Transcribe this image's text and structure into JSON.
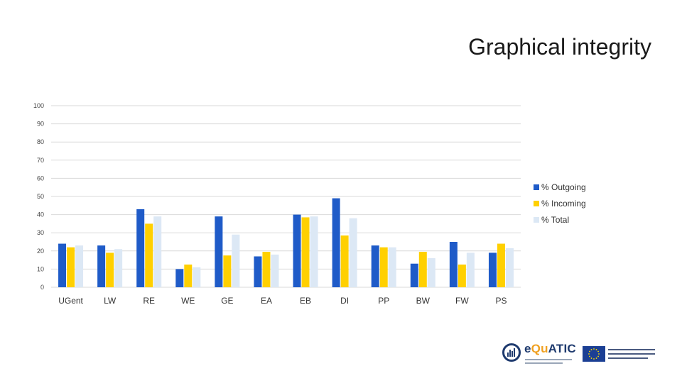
{
  "title": "Graphical integrity",
  "colors": {
    "outgoing": "#1f5bc8",
    "incoming": "#ffd000",
    "total": "#dce8f5",
    "grid": "#d9d9d9"
  },
  "chart_data": {
    "type": "bar",
    "categories": [
      "UGent",
      "LW",
      "RE",
      "WE",
      "GE",
      "EA",
      "EB",
      "DI",
      "PP",
      "BW",
      "FW",
      "PS"
    ],
    "series": [
      {
        "name": "% Outgoing",
        "values": [
          24,
          23,
          43,
          10,
          39,
          17,
          40,
          49,
          23,
          13,
          25,
          19
        ]
      },
      {
        "name": "% Incoming",
        "values": [
          22,
          19,
          35,
          12.5,
          17.5,
          19.5,
          38.5,
          28.5,
          22,
          19.5,
          12.5,
          24
        ]
      },
      {
        "name": "% Total",
        "values": [
          23,
          21,
          39,
          11,
          29,
          18,
          39,
          38,
          22,
          16,
          19,
          21.5
        ]
      }
    ],
    "yticks": [
      0,
      10,
      20,
      30,
      40,
      50,
      60,
      70,
      80,
      90,
      100
    ],
    "ylim": [
      0,
      100
    ],
    "grid": true,
    "legend": "right"
  },
  "logos": {
    "equatic": {
      "name_a": "e",
      "name_b": "Qu",
      "name_c": "ATIC"
    }
  }
}
